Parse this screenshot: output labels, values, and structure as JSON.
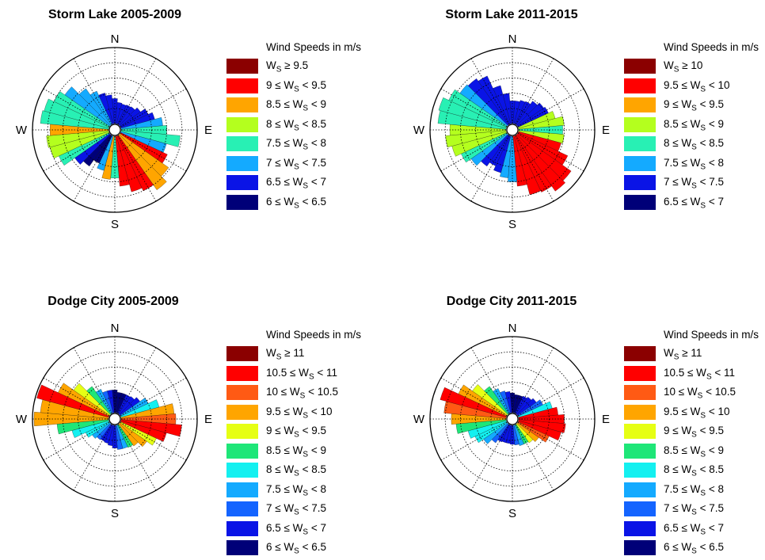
{
  "colors": {
    "dark_red": "#8b0000",
    "red": "#ff0000",
    "orange_red": "#ff5a14",
    "orange": "#ffa500",
    "yellow_green": "#b4ff1e",
    "yellow": "#e6ff14",
    "green": "#1ee678",
    "mint": "#28f0b4",
    "cyan": "#14f0f0",
    "sky": "#14aaff",
    "blue_light": "#1464ff",
    "blue": "#0a14e6",
    "navy": "#000078"
  },
  "chart_data": [
    {
      "type": "wind-rose",
      "title": "Storm Lake 2005-2009",
      "compass_labels": [
        "N",
        "E",
        "S",
        "W"
      ],
      "legend_title": "Wind Speeds in m/s",
      "legend": [
        {
          "label": "W_S ≥ 9.5",
          "color": "#8b0000"
        },
        {
          "label": "9 ≤ W_S < 9.5",
          "color": "#ff0000"
        },
        {
          "label": "8.5 ≤ W_S < 9",
          "color": "#ffa500"
        },
        {
          "label": "8 ≤ W_S < 8.5",
          "color": "#b4ff1e"
        },
        {
          "label": "7.5 ≤ W_S < 8",
          "color": "#28f0b4"
        },
        {
          "label": "7 ≤ W_S < 7.5",
          "color": "#14aaff"
        },
        {
          "label": "6.5 ≤ W_S < 7",
          "color": "#0a14e6"
        },
        {
          "label": "6 ≤ W_S < 6.5",
          "color": "#000078"
        }
      ],
      "sectors": [
        {
          "dir": 0,
          "r": 0.33,
          "color": "#0a14e6"
        },
        {
          "dir": 10,
          "r": 0.28,
          "color": "#0a14e6"
        },
        {
          "dir": 20,
          "r": 0.27,
          "color": "#0a14e6"
        },
        {
          "dir": 30,
          "r": 0.28,
          "color": "#0a14e6"
        },
        {
          "dir": 40,
          "r": 0.29,
          "color": "#0a14e6"
        },
        {
          "dir": 50,
          "r": 0.33,
          "color": "#0a14e6"
        },
        {
          "dir": 60,
          "r": 0.4,
          "color": "#0a14e6"
        },
        {
          "dir": 70,
          "r": 0.46,
          "color": "#0a14e6"
        },
        {
          "dir": 80,
          "r": 0.55,
          "color": "#14aaff"
        },
        {
          "dir": 90,
          "r": 0.6,
          "color": "#28f0b4"
        },
        {
          "dir": 100,
          "r": 0.78,
          "color": "#28f0b4"
        },
        {
          "dir": 110,
          "r": 0.62,
          "color": "#14aaff"
        },
        {
          "dir": 120,
          "r": 0.68,
          "color": "#ff0000"
        },
        {
          "dir": 130,
          "r": 0.78,
          "color": "#ffa500"
        },
        {
          "dir": 140,
          "r": 0.88,
          "color": "#ffa500"
        },
        {
          "dir": 150,
          "r": 0.8,
          "color": "#ff0000"
        },
        {
          "dir": 160,
          "r": 0.76,
          "color": "#ff0000"
        },
        {
          "dir": 170,
          "r": 0.66,
          "color": "#ff0000"
        },
        {
          "dir": 180,
          "r": 0.55,
          "color": "#28f0b4"
        },
        {
          "dir": 190,
          "r": 0.57,
          "color": "#ffa500"
        },
        {
          "dir": 200,
          "r": 0.47,
          "color": "#14aaff"
        },
        {
          "dir": 210,
          "r": 0.4,
          "color": "#000078"
        },
        {
          "dir": 220,
          "r": 0.5,
          "color": "#000078"
        },
        {
          "dir": 230,
          "r": 0.56,
          "color": "#0a14e6"
        },
        {
          "dir": 240,
          "r": 0.73,
          "color": "#28f0b4"
        },
        {
          "dir": 250,
          "r": 0.8,
          "color": "#b4ff1e"
        },
        {
          "dir": 260,
          "r": 0.82,
          "color": "#b4ff1e"
        },
        {
          "dir": 270,
          "r": 0.77,
          "color": "#ffa500"
        },
        {
          "dir": 280,
          "r": 0.9,
          "color": "#28f0b4"
        },
        {
          "dir": 290,
          "r": 0.88,
          "color": "#28f0b4"
        },
        {
          "dir": 300,
          "r": 0.8,
          "color": "#28f0b4"
        },
        {
          "dir": 310,
          "r": 0.72,
          "color": "#14aaff"
        },
        {
          "dir": 320,
          "r": 0.58,
          "color": "#14aaff"
        },
        {
          "dir": 330,
          "r": 0.48,
          "color": "#14aaff"
        },
        {
          "dir": 340,
          "r": 0.42,
          "color": "#0a14e6"
        },
        {
          "dir": 350,
          "r": 0.38,
          "color": "#0a14e6"
        }
      ]
    },
    {
      "type": "wind-rose",
      "title": "Storm Lake 2011-2015",
      "compass_labels": [
        "N",
        "E",
        "S",
        "W"
      ],
      "legend_title": "Wind Speeds in m/s",
      "legend": [
        {
          "label": "W_S ≥ 10",
          "color": "#8b0000"
        },
        {
          "label": "9.5 ≤ W_S < 10",
          "color": "#ff0000"
        },
        {
          "label": "9 ≤ W_S < 9.5",
          "color": "#ffa500"
        },
        {
          "label": "8.5 ≤ W_S < 9",
          "color": "#b4ff1e"
        },
        {
          "label": "8 ≤ W_S < 8.5",
          "color": "#28f0b4"
        },
        {
          "label": "7.5 ≤ W_S < 8",
          "color": "#14aaff"
        },
        {
          "label": "7 ≤ W_S < 7.5",
          "color": "#0a14e6"
        },
        {
          "label": "6.5 ≤ W_S < 7",
          "color": "#000078"
        }
      ],
      "sectors": [
        {
          "dir": 0,
          "r": 0.3,
          "color": "#0a14e6"
        },
        {
          "dir": 10,
          "r": 0.3,
          "color": "#0a14e6"
        },
        {
          "dir": 20,
          "r": 0.32,
          "color": "#0a14e6"
        },
        {
          "dir": 30,
          "r": 0.33,
          "color": "#0a14e6"
        },
        {
          "dir": 40,
          "r": 0.38,
          "color": "#0a14e6"
        },
        {
          "dir": 50,
          "r": 0.42,
          "color": "#0a14e6"
        },
        {
          "dir": 60,
          "r": 0.44,
          "color": "#0a14e6"
        },
        {
          "dir": 70,
          "r": 0.5,
          "color": "#b4ff1e"
        },
        {
          "dir": 80,
          "r": 0.6,
          "color": "#b4ff1e"
        },
        {
          "dir": 90,
          "r": 0.58,
          "color": "#28f0b4"
        },
        {
          "dir": 100,
          "r": 0.6,
          "color": "#b4ff1e"
        },
        {
          "dir": 110,
          "r": 0.58,
          "color": "#ff0000"
        },
        {
          "dir": 120,
          "r": 0.72,
          "color": "#ff0000"
        },
        {
          "dir": 130,
          "r": 0.86,
          "color": "#ff0000"
        },
        {
          "dir": 140,
          "r": 0.9,
          "color": "#ff0000"
        },
        {
          "dir": 150,
          "r": 0.82,
          "color": "#ff0000"
        },
        {
          "dir": 160,
          "r": 0.8,
          "color": "#ff0000"
        },
        {
          "dir": 170,
          "r": 0.66,
          "color": "#ff0000"
        },
        {
          "dir": 180,
          "r": 0.6,
          "color": "#14aaff"
        },
        {
          "dir": 190,
          "r": 0.55,
          "color": "#14aaff"
        },
        {
          "dir": 200,
          "r": 0.5,
          "color": "#0a14e6"
        },
        {
          "dir": 210,
          "r": 0.44,
          "color": "#0a14e6"
        },
        {
          "dir": 220,
          "r": 0.5,
          "color": "#0a14e6"
        },
        {
          "dir": 230,
          "r": 0.58,
          "color": "#14aaff"
        },
        {
          "dir": 240,
          "r": 0.66,
          "color": "#28f0b4"
        },
        {
          "dir": 250,
          "r": 0.74,
          "color": "#b4ff1e"
        },
        {
          "dir": 260,
          "r": 0.8,
          "color": "#b4ff1e"
        },
        {
          "dir": 270,
          "r": 0.74,
          "color": "#b4ff1e"
        },
        {
          "dir": 280,
          "r": 0.9,
          "color": "#28f0b4"
        },
        {
          "dir": 290,
          "r": 0.92,
          "color": "#28f0b4"
        },
        {
          "dir": 300,
          "r": 0.84,
          "color": "#28f0b4"
        },
        {
          "dir": 310,
          "r": 0.76,
          "color": "#14aaff"
        },
        {
          "dir": 320,
          "r": 0.74,
          "color": "#0a14e6"
        },
        {
          "dir": 330,
          "r": 0.7,
          "color": "#0a14e6"
        },
        {
          "dir": 340,
          "r": 0.52,
          "color": "#0a14e6"
        },
        {
          "dir": 350,
          "r": 0.4,
          "color": "#0a14e6"
        }
      ]
    },
    {
      "type": "wind-rose",
      "title": "Dodge City 2005-2009",
      "compass_labels": [
        "N",
        "E",
        "S",
        "W"
      ],
      "legend_title": "Wind Speeds in m/s",
      "legend": [
        {
          "label": "W_S ≥ 11",
          "color": "#8b0000"
        },
        {
          "label": "10.5 ≤ W_S < 11",
          "color": "#ff0000"
        },
        {
          "label": "10 ≤ W_S < 10.5",
          "color": "#ff5a14"
        },
        {
          "label": "9.5 ≤ W_S < 10",
          "color": "#ffa500"
        },
        {
          "label": "9 ≤ W_S < 9.5",
          "color": "#e6ff14"
        },
        {
          "label": "8.5 ≤ W_S < 9",
          "color": "#1ee678"
        },
        {
          "label": "8 ≤ W_S < 8.5",
          "color": "#14f0f0"
        },
        {
          "label": "7.5 ≤ W_S < 8",
          "color": "#14aaff"
        },
        {
          "label": "7 ≤ W_S < 7.5",
          "color": "#1464ff"
        },
        {
          "label": "6.5 ≤ W_S < 7",
          "color": "#0a14e6"
        },
        {
          "label": "6 ≤ W_S < 6.5",
          "color": "#000078"
        }
      ],
      "sectors": [
        {
          "dir": 0,
          "r": 0.3,
          "color": "#000078"
        },
        {
          "dir": 10,
          "r": 0.27,
          "color": "#000078"
        },
        {
          "dir": 20,
          "r": 0.27,
          "color": "#000078"
        },
        {
          "dir": 30,
          "r": 0.27,
          "color": "#0a14e6"
        },
        {
          "dir": 40,
          "r": 0.28,
          "color": "#0a14e6"
        },
        {
          "dir": 50,
          "r": 0.32,
          "color": "#0a14e6"
        },
        {
          "dir": 60,
          "r": 0.4,
          "color": "#14aaff"
        },
        {
          "dir": 70,
          "r": 0.52,
          "color": "#14f0f0"
        },
        {
          "dir": 80,
          "r": 0.7,
          "color": "#ffa500"
        },
        {
          "dir": 90,
          "r": 0.72,
          "color": "#ff5a14"
        },
        {
          "dir": 100,
          "r": 0.8,
          "color": "#ff0000"
        },
        {
          "dir": 110,
          "r": 0.62,
          "color": "#ff0000"
        },
        {
          "dir": 120,
          "r": 0.52,
          "color": "#e6ff14"
        },
        {
          "dir": 130,
          "r": 0.43,
          "color": "#ffa500"
        },
        {
          "dir": 140,
          "r": 0.35,
          "color": "#ffa500"
        },
        {
          "dir": 150,
          "r": 0.33,
          "color": "#1ee678"
        },
        {
          "dir": 160,
          "r": 0.32,
          "color": "#14aaff"
        },
        {
          "dir": 170,
          "r": 0.32,
          "color": "#1464ff"
        },
        {
          "dir": 180,
          "r": 0.3,
          "color": "#0a14e6"
        },
        {
          "dir": 190,
          "r": 0.27,
          "color": "#0a14e6"
        },
        {
          "dir": 200,
          "r": 0.25,
          "color": "#0a14e6"
        },
        {
          "dir": 210,
          "r": 0.24,
          "color": "#0a14e6"
        },
        {
          "dir": 220,
          "r": 0.25,
          "color": "#1464ff"
        },
        {
          "dir": 230,
          "r": 0.28,
          "color": "#14aaff"
        },
        {
          "dir": 240,
          "r": 0.34,
          "color": "#14f0f0"
        },
        {
          "dir": 250,
          "r": 0.5,
          "color": "#14f0f0"
        },
        {
          "dir": 260,
          "r": 0.68,
          "color": "#1ee678"
        },
        {
          "dir": 270,
          "r": 0.98,
          "color": "#ffa500"
        },
        {
          "dir": 280,
          "r": 0.9,
          "color": "#ffa500"
        },
        {
          "dir": 290,
          "r": 0.98,
          "color": "#ff0000"
        },
        {
          "dir": 300,
          "r": 0.74,
          "color": "#ffa500"
        },
        {
          "dir": 310,
          "r": 0.58,
          "color": "#e6ff14"
        },
        {
          "dir": 320,
          "r": 0.44,
          "color": "#1ee678"
        },
        {
          "dir": 330,
          "r": 0.35,
          "color": "#14aaff"
        },
        {
          "dir": 340,
          "r": 0.3,
          "color": "#1464ff"
        },
        {
          "dir": 350,
          "r": 0.3,
          "color": "#0a14e6"
        }
      ]
    },
    {
      "type": "wind-rose",
      "title": "Dodge City 2011-2015",
      "compass_labels": [
        "N",
        "E",
        "S",
        "W"
      ],
      "legend_title": "Wind Speeds in m/s",
      "legend": [
        {
          "label": "W_S ≥ 11",
          "color": "#8b0000"
        },
        {
          "label": "10.5 ≤ W_S < 11",
          "color": "#ff0000"
        },
        {
          "label": "10 ≤ W_S < 10.5",
          "color": "#ff5a14"
        },
        {
          "label": "9.5 ≤ W_S < 10",
          "color": "#ffa500"
        },
        {
          "label": "9 ≤ W_S < 9.5",
          "color": "#e6ff14"
        },
        {
          "label": "8.5 ≤ W_S < 9",
          "color": "#1ee678"
        },
        {
          "label": "8 ≤ W_S < 8.5",
          "color": "#14f0f0"
        },
        {
          "label": "7.5 ≤ W_S < 8",
          "color": "#14aaff"
        },
        {
          "label": "7 ≤ W_S < 7.5",
          "color": "#1464ff"
        },
        {
          "label": "6.5 ≤ W_S < 7",
          "color": "#0a14e6"
        },
        {
          "label": "6 ≤ W_S < 6.5",
          "color": "#000078"
        }
      ],
      "sectors": [
        {
          "dir": 0,
          "r": 0.26,
          "color": "#000078"
        },
        {
          "dir": 10,
          "r": 0.24,
          "color": "#000078"
        },
        {
          "dir": 20,
          "r": 0.24,
          "color": "#000078"
        },
        {
          "dir": 30,
          "r": 0.25,
          "color": "#0a14e6"
        },
        {
          "dir": 40,
          "r": 0.27,
          "color": "#0a14e6"
        },
        {
          "dir": 50,
          "r": 0.3,
          "color": "#0a14e6"
        },
        {
          "dir": 60,
          "r": 0.36,
          "color": "#1464ff"
        },
        {
          "dir": 70,
          "r": 0.46,
          "color": "#14f0f0"
        },
        {
          "dir": 80,
          "r": 0.52,
          "color": "#ff0000"
        },
        {
          "dir": 90,
          "r": 0.6,
          "color": "#ff0000"
        },
        {
          "dir": 100,
          "r": 0.62,
          "color": "#ff0000"
        },
        {
          "dir": 110,
          "r": 0.58,
          "color": "#ff0000"
        },
        {
          "dir": 120,
          "r": 0.45,
          "color": "#ff5a14"
        },
        {
          "dir": 130,
          "r": 0.34,
          "color": "#ffa500"
        },
        {
          "dir": 140,
          "r": 0.3,
          "color": "#e6ff14"
        },
        {
          "dir": 150,
          "r": 0.28,
          "color": "#1ee678"
        },
        {
          "dir": 160,
          "r": 0.28,
          "color": "#14aaff"
        },
        {
          "dir": 170,
          "r": 0.26,
          "color": "#1464ff"
        },
        {
          "dir": 180,
          "r": 0.25,
          "color": "#0a14e6"
        },
        {
          "dir": 190,
          "r": 0.24,
          "color": "#0a14e6"
        },
        {
          "dir": 200,
          "r": 0.24,
          "color": "#0a14e6"
        },
        {
          "dir": 210,
          "r": 0.25,
          "color": "#0a14e6"
        },
        {
          "dir": 220,
          "r": 0.3,
          "color": "#1464ff"
        },
        {
          "dir": 230,
          "r": 0.38,
          "color": "#14aaff"
        },
        {
          "dir": 240,
          "r": 0.46,
          "color": "#14f0f0"
        },
        {
          "dir": 250,
          "r": 0.52,
          "color": "#14f0f0"
        },
        {
          "dir": 260,
          "r": 0.66,
          "color": "#1ee678"
        },
        {
          "dir": 270,
          "r": 0.72,
          "color": "#ffa500"
        },
        {
          "dir": 280,
          "r": 0.82,
          "color": "#ff5a14"
        },
        {
          "dir": 290,
          "r": 0.9,
          "color": "#ff0000"
        },
        {
          "dir": 300,
          "r": 0.7,
          "color": "#ffa500"
        },
        {
          "dir": 310,
          "r": 0.56,
          "color": "#e6ff14"
        },
        {
          "dir": 320,
          "r": 0.44,
          "color": "#1ee678"
        },
        {
          "dir": 330,
          "r": 0.36,
          "color": "#14aaff"
        },
        {
          "dir": 340,
          "r": 0.3,
          "color": "#1464ff"
        },
        {
          "dir": 350,
          "r": 0.28,
          "color": "#0a14e6"
        }
      ]
    }
  ]
}
